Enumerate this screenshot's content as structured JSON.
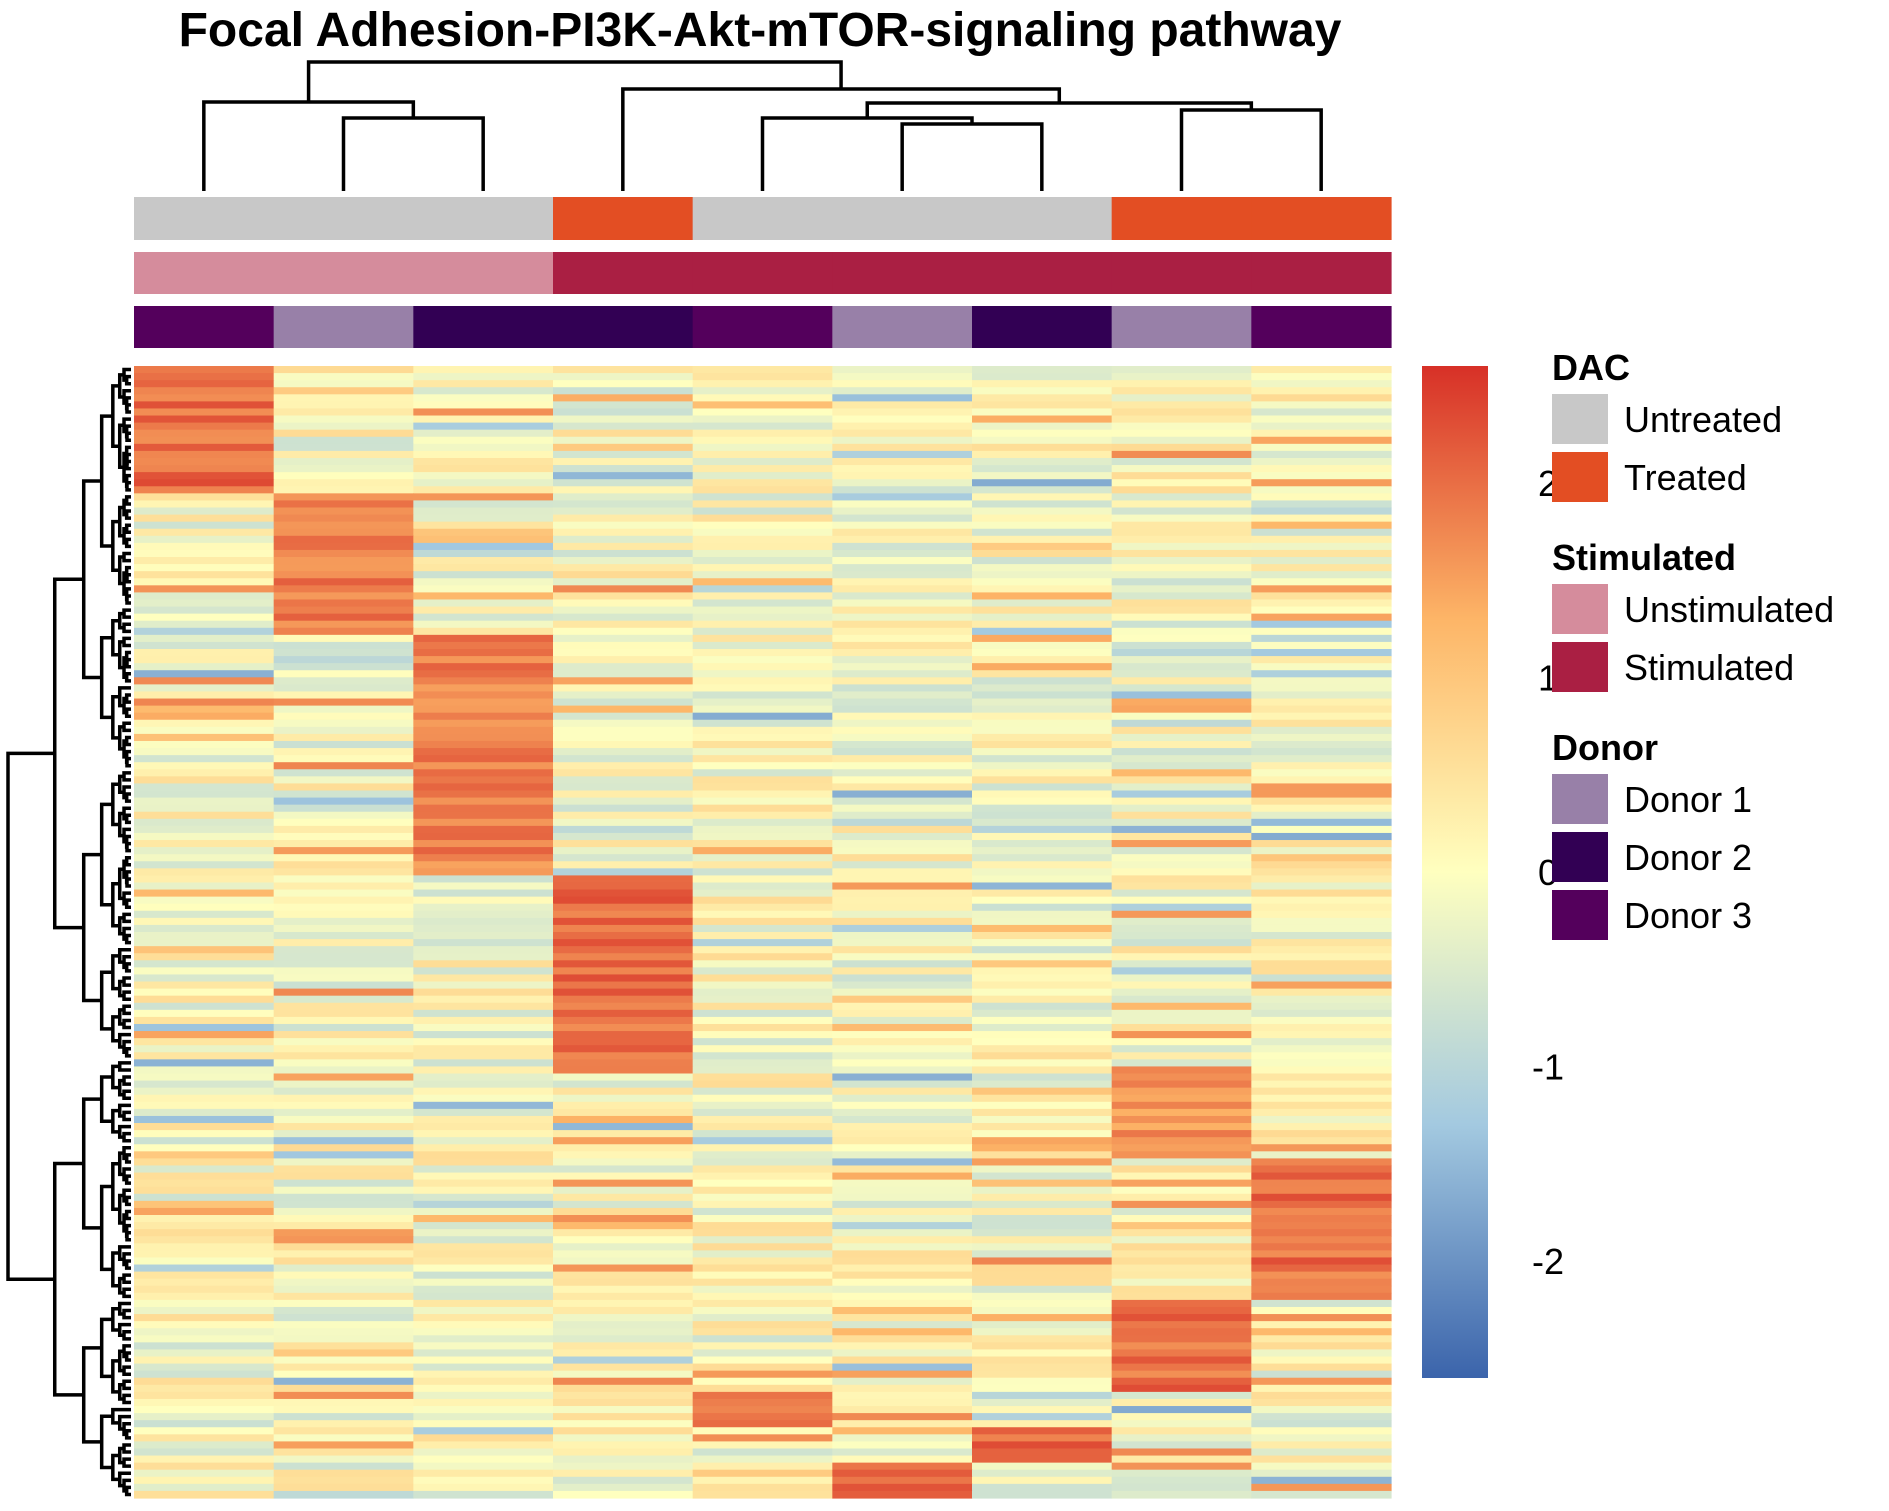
{
  "chart_data": {
    "type": "heatmap",
    "title": "Focal Adhesion-PI3K-Akt-mTOR-signaling pathway",
    "columns": 9,
    "rows": 160,
    "column_annotations": [
      {
        "name": "DAC",
        "values": [
          "Untreated",
          "Untreated",
          "Untreated",
          "Treated",
          "Untreated",
          "Untreated",
          "Untreated",
          "Treated",
          "Treated"
        ]
      },
      {
        "name": "Stimulated",
        "values": [
          "Unstimulated",
          "Unstimulated",
          "Unstimulated",
          "Stimulated",
          "Stimulated",
          "Stimulated",
          "Stimulated",
          "Stimulated",
          "Stimulated"
        ]
      },
      {
        "name": "Donor",
        "values": [
          "Donor 3",
          "Donor 1",
          "Donor 2",
          "Donor 2",
          "Donor 3",
          "Donor 1",
          "Donor 2",
          "Donor 1",
          "Donor 3"
        ]
      }
    ],
    "row_clusters": [
      {
        "column": 0,
        "row_range": [
          0,
          18
        ],
        "value": 2.0
      },
      {
        "column": 1,
        "row_range": [
          18,
          38
        ],
        "value": 1.8
      },
      {
        "column": 2,
        "row_range": [
          38,
          72
        ],
        "value": 1.8
      },
      {
        "column": 3,
        "row_range": [
          72,
          100
        ],
        "value": 2.0
      },
      {
        "column": 7,
        "row_range": [
          100,
          112
        ],
        "value": 1.6
      },
      {
        "column": 8,
        "row_range": [
          112,
          132
        ],
        "value": 2.0
      },
      {
        "column": 7,
        "row_range": [
          132,
          145
        ],
        "value": 2.0
      },
      {
        "column": 4,
        "row_range": [
          145,
          150
        ],
        "value": 2.0
      },
      {
        "column": 6,
        "row_range": [
          150,
          155
        ],
        "value": 2.0
      },
      {
        "column": 5,
        "row_range": [
          155,
          160
        ],
        "value": 2.0
      }
    ],
    "color_scale": {
      "ticks": [
        2,
        1,
        0,
        -1,
        -2
      ],
      "range": [
        -2.6,
        2.6
      ],
      "colors": [
        "#3B64AB",
        "#A3C9E0",
        "#FFFFBF",
        "#FDB567",
        "#D73027"
      ]
    },
    "legends": [
      {
        "title": "DAC",
        "entries": [
          {
            "label": "Untreated",
            "color": "#C8C8C8"
          },
          {
            "label": "Treated",
            "color": "#E34E23"
          }
        ]
      },
      {
        "title": "Stimulated",
        "entries": [
          {
            "label": "Unstimulated",
            "color": "#D58C9C"
          },
          {
            "label": "Stimulated",
            "color": "#AA1F43"
          }
        ]
      },
      {
        "title": "Donor",
        "entries": [
          {
            "label": "Donor 1",
            "color": "#9880A8"
          },
          {
            "label": "Donor 2",
            "color": "#320054"
          },
          {
            "label": "Donor 3",
            "color": "#54005C"
          }
        ]
      }
    ]
  }
}
